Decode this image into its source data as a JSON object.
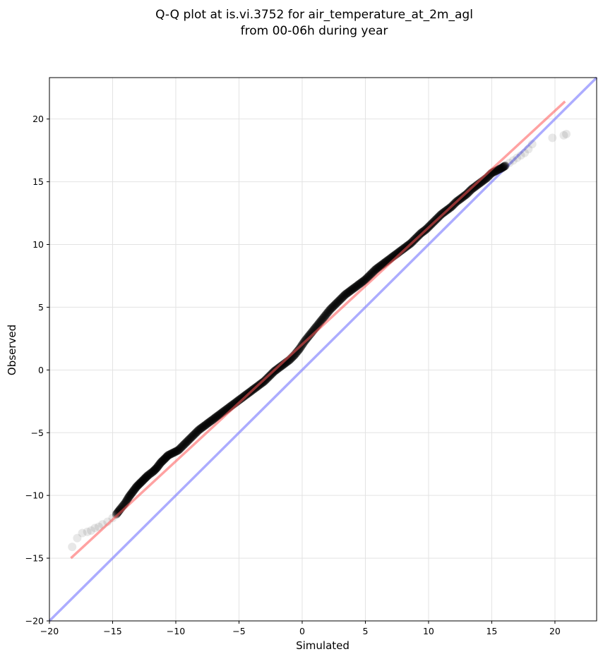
{
  "chart_data": {
    "type": "scatter",
    "title": "Q-Q plot at is.vi.3752 for air_temperature_at_2m_agl",
    "subtitle": "from 00-06h during year",
    "xlabel": "Simulated",
    "ylabel": "Observed",
    "xlim": [
      -20,
      23.3
    ],
    "ylim": [
      -20,
      23.3
    ],
    "x_ticks": [
      -20,
      -15,
      -10,
      -5,
      0,
      5,
      10,
      15,
      20
    ],
    "y_ticks": [
      -20,
      -15,
      -10,
      -5,
      0,
      5,
      10,
      15,
      20
    ],
    "x_tick_labels": [
      "−20",
      "−15",
      "−10",
      "−5",
      "0",
      "5",
      "10",
      "15",
      "20"
    ],
    "y_tick_labels": [
      "−20",
      "−15",
      "−10",
      "−5",
      "0",
      "5",
      "10",
      "15",
      "20"
    ],
    "grid": true,
    "marker_color": "#000000",
    "regression_line": {
      "color": "#ff5555",
      "x": [
        -18.3,
        20.8
      ],
      "y": [
        -15.0,
        21.4
      ]
    },
    "identity_line": {
      "color": "#8080ff",
      "x": [
        -20,
        23.3
      ],
      "y": [
        -20,
        23.3
      ]
    },
    "quantiles": {
      "x": [
        -18.2,
        -17.8,
        -17.4,
        -17.0,
        -16.7,
        -16.4,
        -16.1,
        -15.8,
        -15.4,
        -15.0,
        -14.7,
        -14.4,
        -14.0,
        -13.7,
        -13.4,
        -13.1,
        -12.8,
        -12.5,
        -12.2,
        -11.8,
        -11.5,
        -11.2,
        -10.9,
        -10.6,
        -10.2,
        -9.8,
        -9.4,
        -9.0,
        -8.6,
        -8.2,
        -7.8,
        -7.4,
        -7.0,
        -6.6,
        -6.2,
        -5.8,
        -5.4,
        -5.0,
        -4.6,
        -4.2,
        -3.8,
        -3.4,
        -3.0,
        -2.6,
        -2.2,
        -1.8,
        -1.4,
        -1.0,
        -0.6,
        -0.2,
        0.2,
        0.6,
        1.0,
        1.4,
        1.8,
        2.2,
        2.6,
        3.0,
        3.4,
        3.8,
        4.2,
        4.6,
        5.0,
        5.4,
        5.8,
        6.2,
        6.6,
        7.0,
        7.4,
        7.8,
        8.2,
        8.6,
        9.0,
        9.4,
        9.8,
        10.2,
        10.6,
        11.0,
        11.4,
        11.8,
        12.2,
        12.6,
        13.0,
        13.4,
        13.8,
        14.2,
        14.6,
        15.0,
        15.4,
        15.8,
        16.1,
        16.4,
        16.7,
        17.0,
        17.3,
        17.6,
        17.9,
        18.2,
        19.8,
        20.7,
        20.9
      ],
      "y": [
        -14.1,
        -13.4,
        -13.0,
        -12.9,
        -12.8,
        -12.6,
        -12.5,
        -12.3,
        -12.1,
        -11.8,
        -11.5,
        -11.1,
        -10.6,
        -10.1,
        -9.7,
        -9.3,
        -9.0,
        -8.7,
        -8.4,
        -8.1,
        -7.8,
        -7.4,
        -7.1,
        -6.8,
        -6.6,
        -6.4,
        -6.0,
        -5.6,
        -5.2,
        -4.8,
        -4.5,
        -4.2,
        -3.9,
        -3.6,
        -3.3,
        -3.0,
        -2.7,
        -2.4,
        -2.1,
        -1.8,
        -1.5,
        -1.2,
        -0.9,
        -0.5,
        -0.1,
        0.2,
        0.5,
        0.8,
        1.2,
        1.7,
        2.3,
        2.8,
        3.3,
        3.8,
        4.3,
        4.8,
        5.2,
        5.6,
        6.0,
        6.3,
        6.6,
        6.9,
        7.2,
        7.6,
        8.0,
        8.3,
        8.6,
        8.9,
        9.2,
        9.5,
        9.8,
        10.1,
        10.5,
        10.9,
        11.2,
        11.6,
        12.0,
        12.4,
        12.7,
        13.0,
        13.4,
        13.7,
        14.0,
        14.4,
        14.7,
        15.0,
        15.3,
        15.7,
        15.9,
        16.1,
        16.3,
        16.5,
        16.7,
        16.9,
        17.1,
        17.3,
        17.6,
        18.0,
        18.5,
        18.7,
        18.8
      ]
    }
  }
}
